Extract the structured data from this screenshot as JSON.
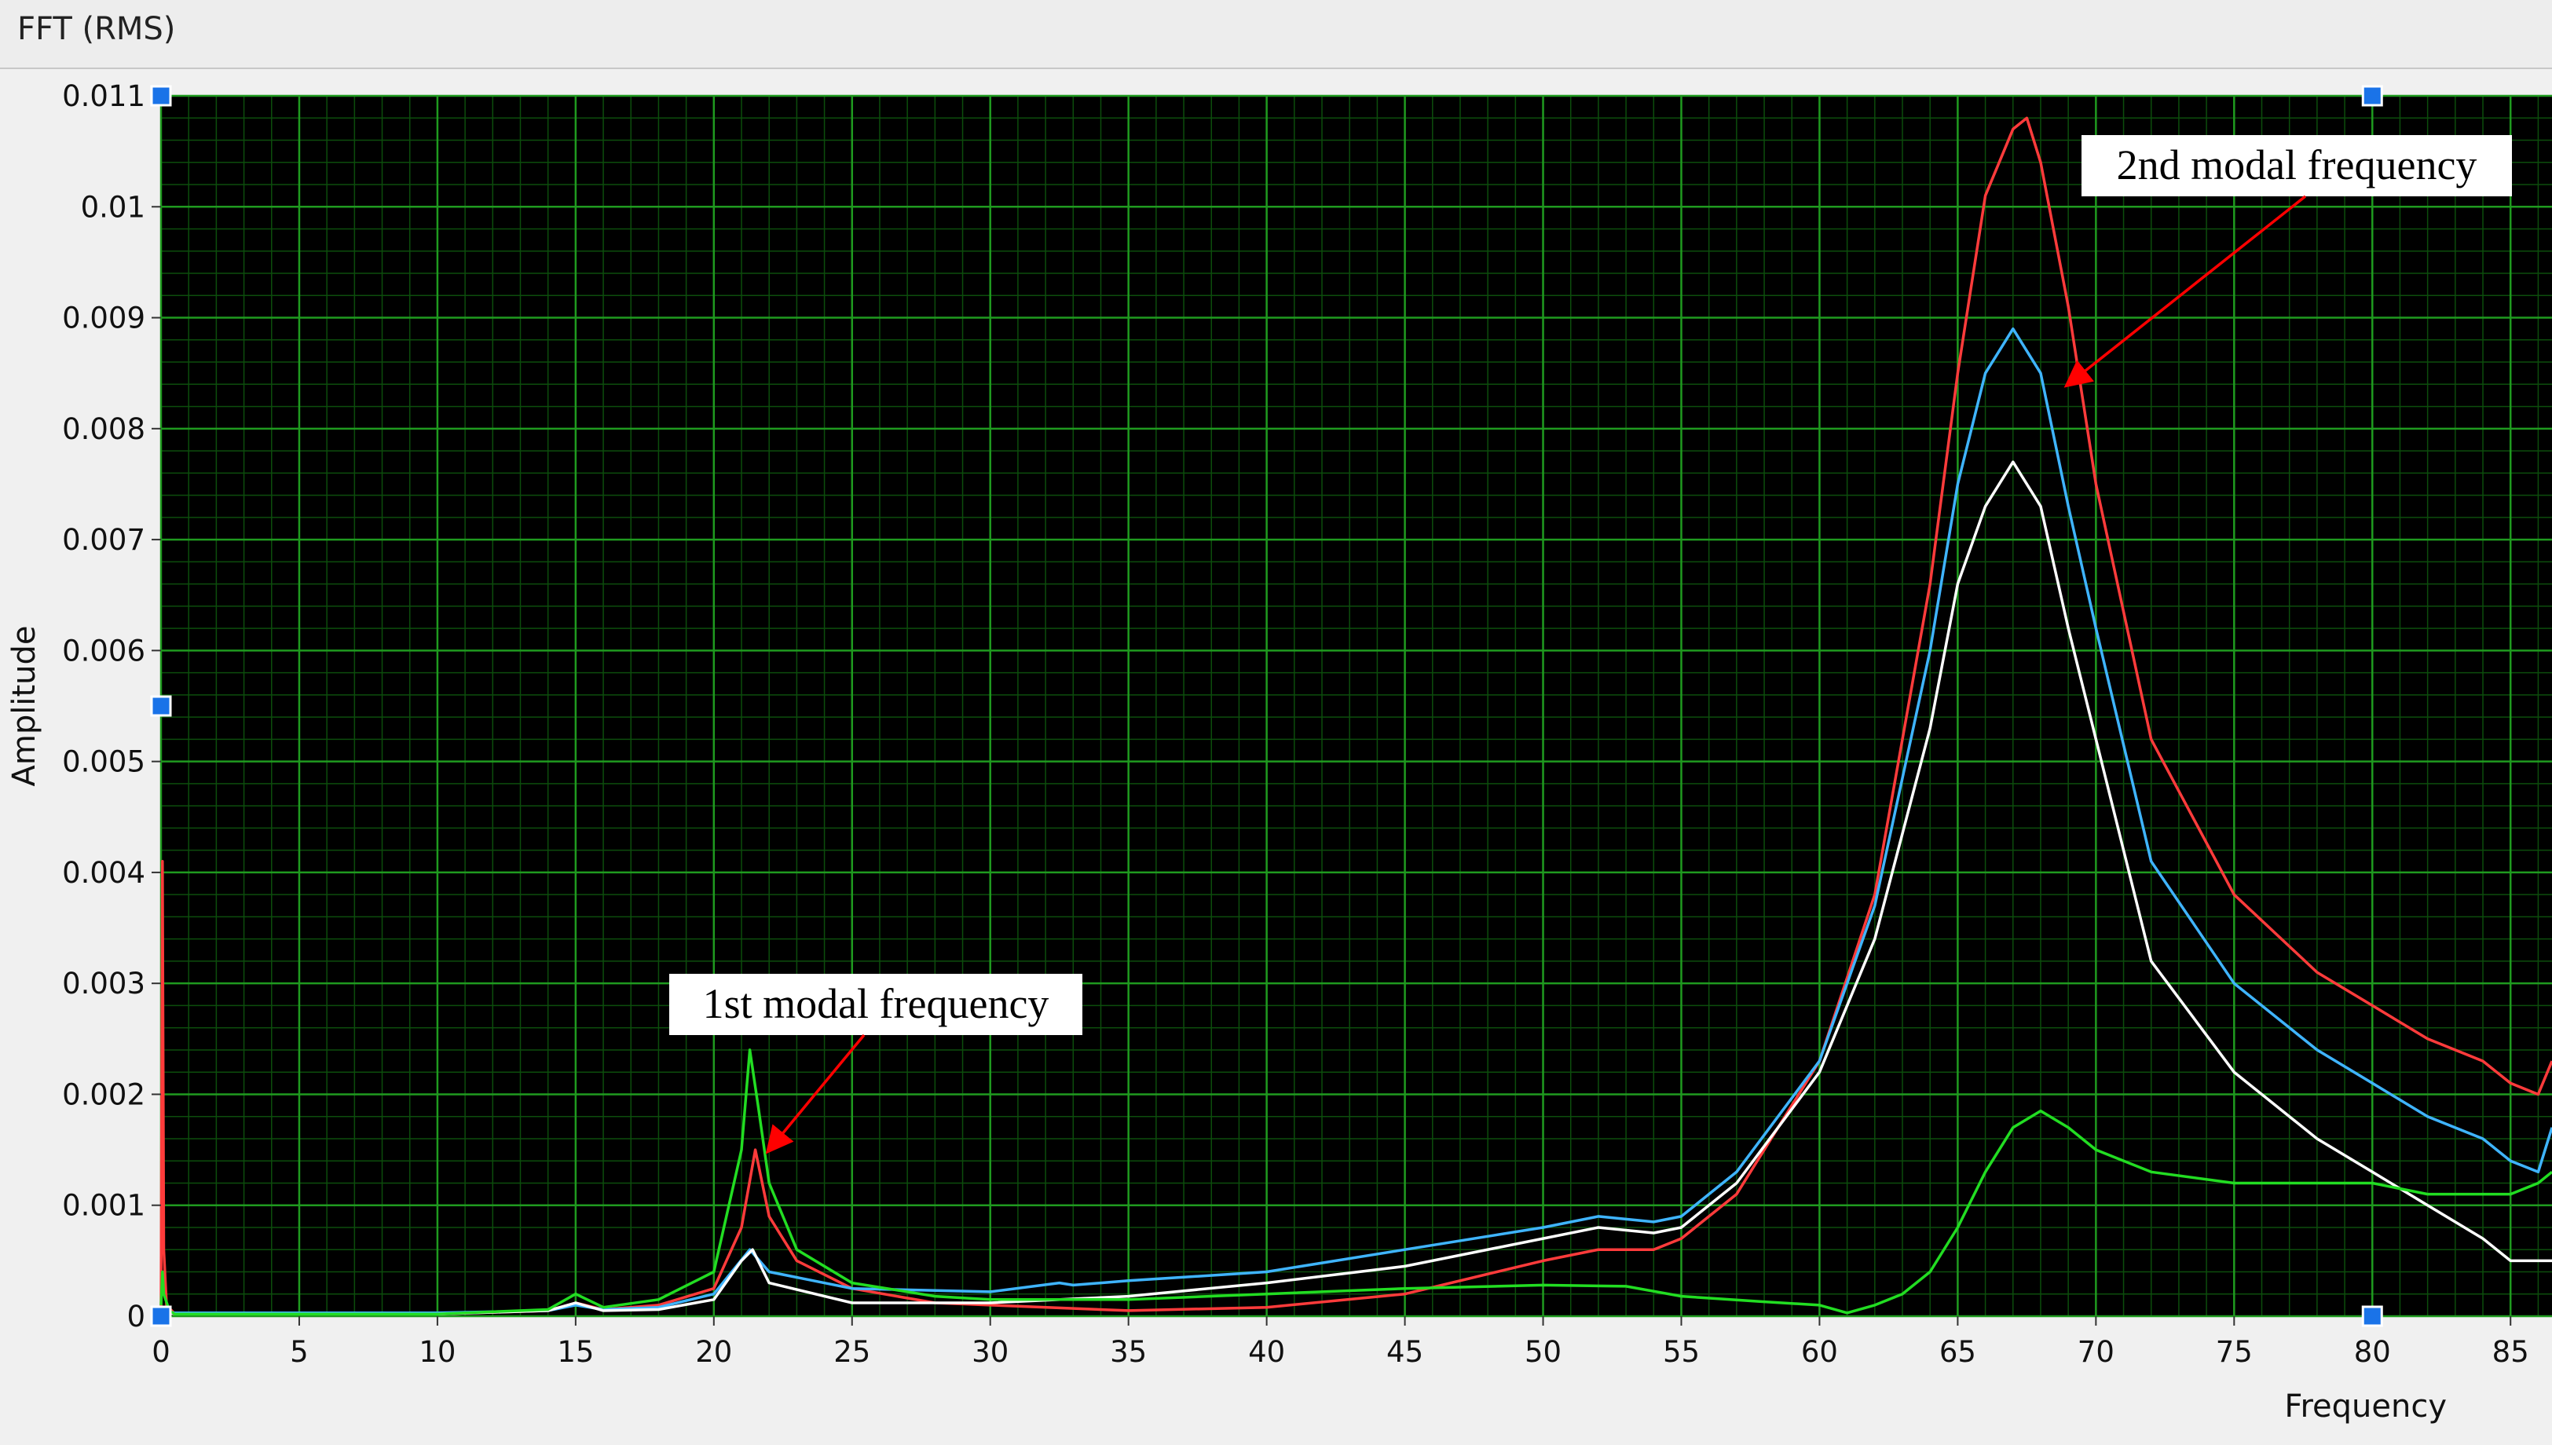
{
  "window": {
    "title": "FFT (RMS)"
  },
  "colors": {
    "plot_background": "#000000",
    "grid_major": "#1f9a1f",
    "grid_minor": "#0c4d0c",
    "red": "#ff3b3b",
    "blue": "#3fb4ff",
    "white": "#ffffff",
    "green": "#22dd22",
    "cursor": "#1a73e8"
  },
  "chart_data": {
    "type": "line",
    "title": "",
    "xlabel": "Frequency",
    "ylabel": "Amplitude",
    "xlim": [
      0,
      86.5
    ],
    "ylim": [
      0,
      0.011
    ],
    "x_ticks": [
      "0",
      "5",
      "10",
      "15",
      "20",
      "25",
      "30",
      "35",
      "40",
      "45",
      "50",
      "55",
      "60",
      "65",
      "70",
      "75",
      "80",
      "85"
    ],
    "y_ticks": [
      "0",
      "0.001",
      "0.002",
      "0.003",
      "0.004",
      "0.005",
      "0.006",
      "0.007",
      "0.008",
      "0.009",
      "0.01",
      "0.011"
    ],
    "grid": true,
    "series": [
      {
        "color_key": "red",
        "x": [
          0,
          0.05,
          0.1,
          0.2,
          0.5,
          5,
          10,
          14,
          15,
          16,
          18,
          20,
          21,
          21.5,
          22,
          23,
          25,
          28,
          30,
          35,
          40,
          45,
          50,
          52,
          54,
          55,
          57,
          60,
          62,
          64,
          65,
          66,
          67,
          67.5,
          68,
          69,
          70,
          72,
          75,
          78,
          80,
          82,
          84,
          85,
          86,
          86.5
        ],
        "y": [
          0,
          0.0041,
          0.0006,
          0.0001,
          2e-05,
          2e-05,
          2e-05,
          5e-05,
          0.00012,
          6e-05,
          0.0001,
          0.00025,
          0.0008,
          0.0015,
          0.0009,
          0.0005,
          0.00025,
          0.00012,
          0.0001,
          5e-05,
          8e-05,
          0.0002,
          0.0005,
          0.0006,
          0.0006,
          0.0007,
          0.0011,
          0.0023,
          0.0038,
          0.0066,
          0.0085,
          0.0101,
          0.0107,
          0.0108,
          0.0104,
          0.0091,
          0.0075,
          0.0052,
          0.0038,
          0.0031,
          0.0028,
          0.0025,
          0.0023,
          0.0021,
          0.002,
          0.0023
        ]
      },
      {
        "color_key": "blue",
        "x": [
          0,
          0.5,
          5,
          10,
          14,
          15,
          16,
          18,
          20,
          21.3,
          22,
          25,
          30,
          32.5,
          33,
          35,
          40,
          45,
          50,
          52,
          54,
          55,
          57,
          60,
          62,
          64,
          65,
          66,
          67,
          68,
          69,
          70,
          72,
          75,
          78,
          80,
          82,
          84,
          85,
          86,
          86.5
        ],
        "y": [
          5e-05,
          3e-05,
          3e-05,
          3e-05,
          5e-05,
          0.0001,
          6e-05,
          8e-05,
          0.0002,
          0.0006,
          0.0004,
          0.00025,
          0.00022,
          0.0003,
          0.00028,
          0.00032,
          0.0004,
          0.0006,
          0.0008,
          0.0009,
          0.00085,
          0.0009,
          0.0013,
          0.0023,
          0.0037,
          0.006,
          0.0075,
          0.0085,
          0.0089,
          0.0085,
          0.0073,
          0.0062,
          0.0041,
          0.003,
          0.0024,
          0.0021,
          0.0018,
          0.0016,
          0.0014,
          0.0013,
          0.0017
        ]
      },
      {
        "color_key": "white",
        "x": [
          0,
          0.5,
          5,
          10,
          14,
          15,
          16,
          18,
          20,
          21,
          21.4,
          22,
          25,
          30,
          35,
          40,
          45,
          50,
          52,
          54,
          55,
          57,
          60,
          62,
          64,
          65,
          66,
          67,
          68,
          69,
          70,
          72,
          75,
          78,
          80,
          82,
          84,
          85,
          86,
          86.5
        ],
        "y": [
          5e-05,
          2e-05,
          2e-05,
          2e-05,
          5e-05,
          0.00012,
          5e-05,
          6e-05,
          0.00015,
          0.0005,
          0.0006,
          0.0003,
          0.00012,
          0.00012,
          0.00018,
          0.0003,
          0.00045,
          0.0007,
          0.0008,
          0.00075,
          0.0008,
          0.0012,
          0.0022,
          0.0034,
          0.0053,
          0.0066,
          0.0073,
          0.0077,
          0.0073,
          0.0062,
          0.0052,
          0.0032,
          0.0022,
          0.0016,
          0.0013,
          0.001,
          0.0007,
          0.0005,
          0.0005,
          0.0005
        ]
      },
      {
        "color_key": "green",
        "x": [
          0,
          0.05,
          0.1,
          0.3,
          0.5,
          5,
          10,
          14,
          15,
          16,
          18,
          20,
          21,
          21.3,
          21.6,
          22,
          23,
          25,
          28,
          30,
          35,
          40,
          45,
          50,
          53,
          55,
          58,
          60,
          61,
          62,
          63,
          64,
          65,
          66,
          67,
          68,
          69,
          70,
          72,
          75,
          78,
          80,
          82,
          84,
          85,
          86,
          86.5
        ],
        "y": [
          0.0001,
          0.0004,
          0.0002,
          5e-05,
          2e-05,
          2e-05,
          2e-05,
          6e-05,
          0.0002,
          8e-05,
          0.00015,
          0.0004,
          0.0015,
          0.0024,
          0.0019,
          0.0012,
          0.0006,
          0.0003,
          0.00018,
          0.00015,
          0.00015,
          0.0002,
          0.00025,
          0.00028,
          0.00027,
          0.00018,
          0.00013,
          0.0001,
          3e-05,
          0.0001,
          0.0002,
          0.0004,
          0.0008,
          0.0013,
          0.0017,
          0.00185,
          0.0017,
          0.0015,
          0.0013,
          0.0012,
          0.0012,
          0.0012,
          0.0011,
          0.0011,
          0.0011,
          0.0012,
          0.0013
        ]
      }
    ],
    "annotations": [
      {
        "text": "2nd modal frequency",
        "target": {
          "x": 69.0,
          "y": 0.0084
        }
      },
      {
        "text": "1st modal frequency",
        "target": {
          "x": 22.0,
          "y": 0.0015
        }
      }
    ],
    "cursors": [
      {
        "x": 0,
        "y": 0.011
      },
      {
        "x": 80,
        "y": 0.011
      },
      {
        "x": 0,
        "y": 0.0055
      },
      {
        "x": 0,
        "y": 0
      },
      {
        "x": 80,
        "y": 0
      }
    ]
  }
}
